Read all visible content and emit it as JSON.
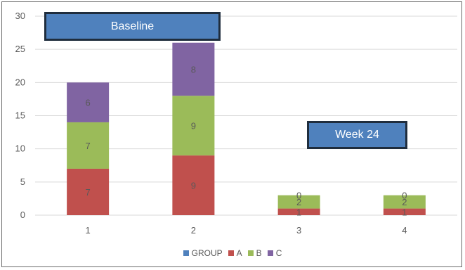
{
  "chart_data": {
    "type": "bar",
    "stacked": true,
    "categories": [
      "1",
      "2",
      "3",
      "4"
    ],
    "series": [
      {
        "name": "GROUP",
        "color": "#4f81bd",
        "values": [
          0,
          0,
          0,
          0
        ],
        "labels": [
          "",
          "",
          "",
          ""
        ]
      },
      {
        "name": "A",
        "color": "#c0504d",
        "values": [
          7,
          9,
          1,
          1
        ],
        "labels": [
          "7",
          "9",
          "1",
          "1"
        ]
      },
      {
        "name": "B",
        "color": "#9bbb59",
        "values": [
          7,
          9,
          2,
          2
        ],
        "labels": [
          "7",
          "9",
          "2",
          "2"
        ]
      },
      {
        "name": "C",
        "color": "#8064a2",
        "values": [
          6,
          8,
          0,
          0
        ],
        "labels": [
          "6",
          "8",
          "0",
          "0"
        ]
      }
    ],
    "ylim": [
      0,
      30
    ],
    "yticks": [
      "0",
      "5",
      "10",
      "15",
      "20",
      "25",
      "30"
    ],
    "grid": true,
    "legend_position": "bottom",
    "annotations": [
      "Baseline",
      "Week 24"
    ]
  }
}
